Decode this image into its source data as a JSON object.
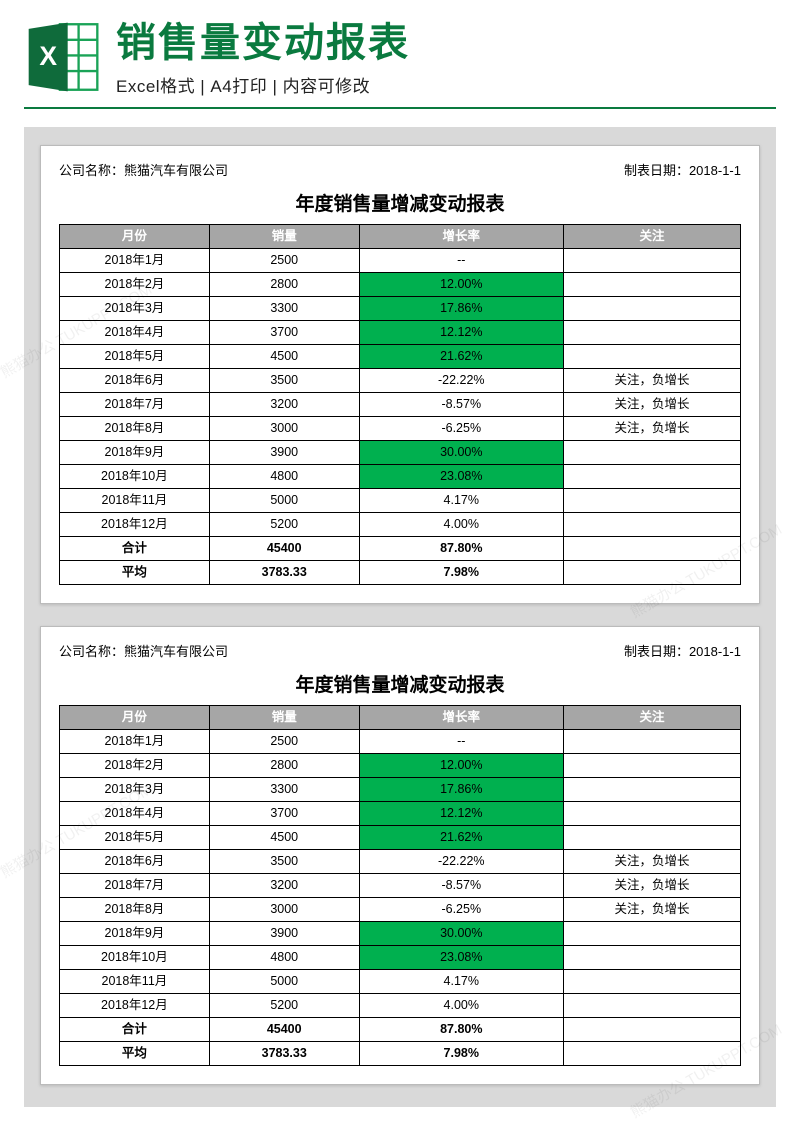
{
  "header": {
    "main_title": "销售量变动报表",
    "sub_title": "Excel格式 | A4打印 | 内容可修改",
    "divider_color": "#0a7a3f",
    "title_color": "#0a7a3f"
  },
  "meta": {
    "company_label": "公司名称：",
    "company_value": "熊猫汽车有限公司",
    "date_label": "制表日期：",
    "date_value": "2018-1-1"
  },
  "report": {
    "title": "年度销售量增减变动报表",
    "columns": [
      "月份",
      "销量",
      "增长率",
      "关注"
    ],
    "header_bg": "#a6a6a6",
    "header_fg": "#ffffff",
    "highlight_bg": "#00b04f",
    "rows": [
      {
        "month": "2018年1月",
        "sales": "2500",
        "rate": "--",
        "note": "",
        "hl": false
      },
      {
        "month": "2018年2月",
        "sales": "2800",
        "rate": "12.00%",
        "note": "",
        "hl": true
      },
      {
        "month": "2018年3月",
        "sales": "3300",
        "rate": "17.86%",
        "note": "",
        "hl": true
      },
      {
        "month": "2018年4月",
        "sales": "3700",
        "rate": "12.12%",
        "note": "",
        "hl": true
      },
      {
        "month": "2018年5月",
        "sales": "4500",
        "rate": "21.62%",
        "note": "",
        "hl": true
      },
      {
        "month": "2018年6月",
        "sales": "3500",
        "rate": "-22.22%",
        "note": "关注，负增长",
        "hl": false
      },
      {
        "month": "2018年7月",
        "sales": "3200",
        "rate": "-8.57%",
        "note": "关注，负增长",
        "hl": false
      },
      {
        "month": "2018年8月",
        "sales": "3000",
        "rate": "-6.25%",
        "note": "关注，负增长",
        "hl": false
      },
      {
        "month": "2018年9月",
        "sales": "3900",
        "rate": "30.00%",
        "note": "",
        "hl": true
      },
      {
        "month": "2018年10月",
        "sales": "4800",
        "rate": "23.08%",
        "note": "",
        "hl": true
      },
      {
        "month": "2018年11月",
        "sales": "5000",
        "rate": "4.17%",
        "note": "",
        "hl": false
      },
      {
        "month": "2018年12月",
        "sales": "5200",
        "rate": "4.00%",
        "note": "",
        "hl": false
      }
    ],
    "summary": [
      {
        "label": "合计",
        "sales": "45400",
        "rate": "87.80%"
      },
      {
        "label": "平均",
        "sales": "3783.33",
        "rate": "7.98%"
      }
    ]
  },
  "watermark_text": "熊猫办公 TUKUPPT.COM",
  "icon_colors": {
    "dark": "#0f6b3b",
    "light": "#1aa357",
    "white": "#ffffff"
  }
}
